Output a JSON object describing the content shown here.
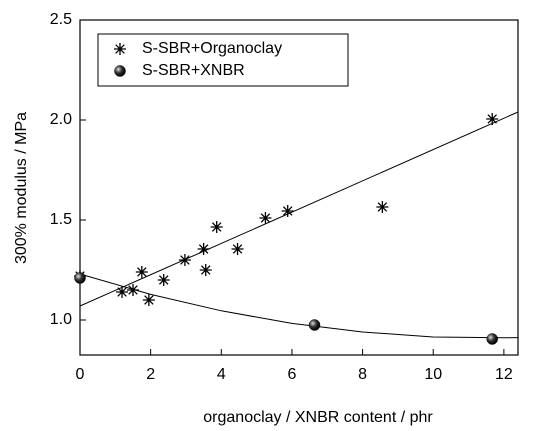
{
  "chart_data": {
    "type": "scatter",
    "xlabel": "organoclay / XNBR content  / phr",
    "ylabel": "300% modulus / MPa",
    "xlim": [
      0,
      12.4
    ],
    "ylim": [
      0.825,
      2.5
    ],
    "xticks": [
      0,
      2,
      4,
      6,
      8,
      10,
      12
    ],
    "yticks": [
      {
        "value": 1.0,
        "label": "1.0"
      },
      1.5,
      {
        "value": 2.0,
        "label": "2.0"
      },
      2.5
    ],
    "legend": "upper left",
    "series": [
      {
        "name": "S-SBR+Organoclay",
        "marker": "asterisk",
        "color": "#000000",
        "x": [
          0,
          1.19,
          1.5,
          1.75,
          1.95,
          2.37,
          2.97,
          3.5,
          3.56,
          3.87,
          4.46,
          5.25,
          5.88,
          8.56,
          11.67
        ],
        "values": [
          1.22,
          1.14,
          1.15,
          1.24,
          1.1,
          1.2,
          1.3,
          1.355,
          1.25,
          1.465,
          1.355,
          1.51,
          1.545,
          1.565,
          2.005
        ]
      },
      {
        "name": "S-SBR+XNBR",
        "marker": "ball",
        "color": "#000000",
        "x": [
          0,
          6.64,
          11.67
        ],
        "values": [
          1.21,
          0.975,
          0.905
        ]
      }
    ],
    "fit_lines": [
      {
        "x": [
          0,
          12.4
        ],
        "values": [
          1.07,
          2.04
        ]
      },
      {
        "x": [
          0,
          2,
          4,
          6,
          8,
          10,
          12,
          12.4
        ],
        "values": [
          1.23,
          1.128,
          1.046,
          0.983,
          0.94,
          0.915,
          0.911,
          0.912
        ]
      }
    ]
  }
}
